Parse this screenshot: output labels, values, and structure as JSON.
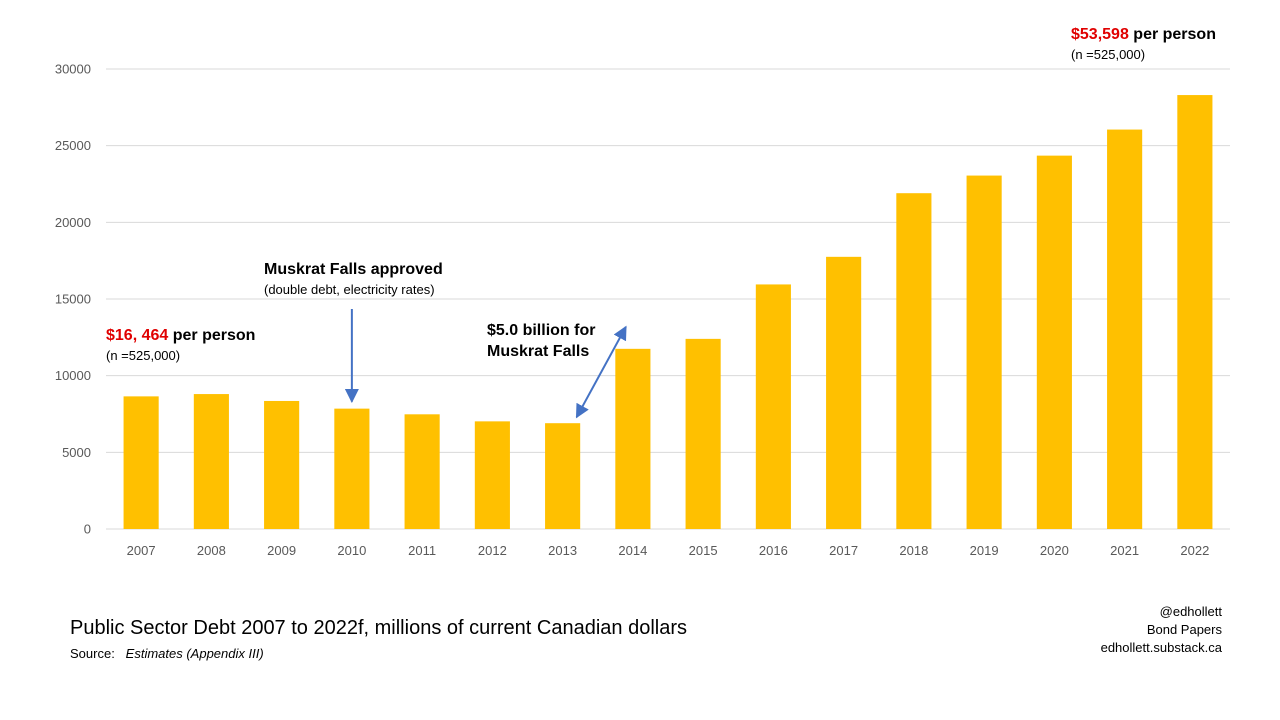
{
  "chart_data": {
    "type": "bar",
    "categories": [
      "2007",
      "2008",
      "2009",
      "2010",
      "2011",
      "2012",
      "2013",
      "2014",
      "2015",
      "2016",
      "2017",
      "2018",
      "2019",
      "2020",
      "2021",
      "2022"
    ],
    "values": [
      8650,
      8800,
      8350,
      7850,
      7480,
      7020,
      6900,
      11750,
      12400,
      15950,
      17750,
      21900,
      23050,
      24350,
      26050,
      28300
    ],
    "ylim": [
      0,
      30000
    ],
    "yticks": [
      0,
      5000,
      10000,
      15000,
      20000,
      25000,
      30000
    ],
    "bar_color": "#FFC000",
    "grid": true,
    "grid_color": "#d9d9d9",
    "arrow_color": "#4472C4",
    "title": "Public Sector Debt 2007 to 2022f,  millions of current Canadian dollars",
    "annotations": {
      "start": {
        "amount": "$16, 464",
        "suffix": " per person",
        "note": "(n =525,000)",
        "amount_color": "#E00000"
      },
      "end": {
        "amount": "$53,598",
        "suffix": " per person",
        "note": "(n =525,000)",
        "amount_color": "#E00000"
      },
      "mf_approved": {
        "title": "Muskrat Falls approved",
        "note": "(double debt, electricity rates)",
        "category": "2010"
      },
      "mf_5b": {
        "line1": "$5.0 billion for",
        "line2": "Muskrat Falls",
        "from": "2013",
        "to": "2014"
      }
    }
  },
  "footer": {
    "source_label": "Source:",
    "source_text": "Estimates (Appendix III)"
  },
  "credits": [
    "@edhollett",
    "Bond Papers",
    "edhollett.substack.ca"
  ]
}
